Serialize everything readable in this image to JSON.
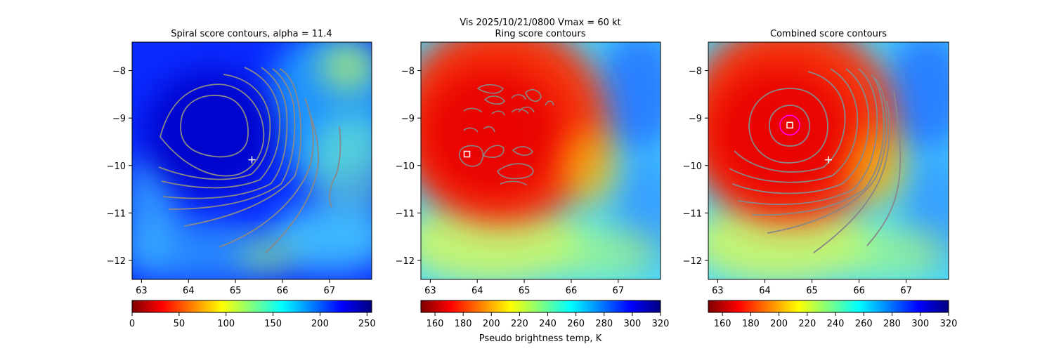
{
  "figure": {
    "suptitle": "Vis  2025/10/21/0800    Vmax = 60 kt",
    "colorbar_label": "Pseudo brightness temp, K"
  },
  "chart_data": [
    {
      "type": "heatmap",
      "title": "Spiral score contours, alpha = 11.4",
      "x_ticks": [
        63,
        64,
        65,
        66,
        67
      ],
      "y_ticks": [
        -8,
        -9,
        -10,
        -11,
        -12
      ],
      "xlim": [
        62.8,
        67.9
      ],
      "ylim": [
        -12.4,
        -7.4
      ],
      "colormap": "jet_r",
      "colorbar": {
        "ticks": [
          0,
          50,
          100,
          150,
          200,
          250
        ],
        "range": [
          0,
          255
        ]
      },
      "markers": [
        {
          "kind": "plus",
          "x": 65.35,
          "y": -9.88,
          "color": "#ffffff"
        }
      ],
      "contour_color": "#888888"
    },
    {
      "type": "heatmap",
      "title": "Ring score contours",
      "x_ticks": [
        63,
        64,
        65,
        66,
        67
      ],
      "y_ticks": [
        -8,
        -9,
        -10,
        -11,
        -12
      ],
      "xlim": [
        62.8,
        67.9
      ],
      "ylim": [
        -12.4,
        -7.4
      ],
      "colormap": "jet_r",
      "colorbar": {
        "ticks": [
          160,
          180,
          200,
          220,
          240,
          260,
          280,
          300,
          320
        ],
        "range": [
          150,
          320
        ]
      },
      "markers": [
        {
          "kind": "square",
          "x": 63.78,
          "y": -9.76,
          "color": "#ffffff"
        }
      ],
      "contour_color": "#888888"
    },
    {
      "type": "heatmap",
      "title": "Combined score contours",
      "x_ticks": [
        63,
        64,
        65,
        66,
        67
      ],
      "y_ticks": [
        -8,
        -9,
        -10,
        -11,
        -12
      ],
      "xlim": [
        62.8,
        67.9
      ],
      "ylim": [
        -12.4,
        -7.4
      ],
      "colormap": "jet_r",
      "colorbar": {
        "ticks": [
          160,
          180,
          200,
          220,
          240,
          260,
          280,
          300,
          320
        ],
        "range": [
          150,
          320
        ]
      },
      "markers": [
        {
          "kind": "square",
          "x": 64.53,
          "y": -9.15,
          "color": "#ffffff"
        },
        {
          "kind": "circle",
          "x": 64.53,
          "y": -9.15,
          "color": "#ff00ff"
        },
        {
          "kind": "plus",
          "x": 65.35,
          "y": -9.88,
          "color": "#ffffff"
        }
      ],
      "contour_color": "#888888"
    }
  ],
  "palette": {
    "jet_r": [
      "#7f0000",
      "#ff0000",
      "#ff7f00",
      "#ffff00",
      "#7fff7f",
      "#00ffff",
      "#007fff",
      "#0000ff",
      "#00007f"
    ]
  }
}
